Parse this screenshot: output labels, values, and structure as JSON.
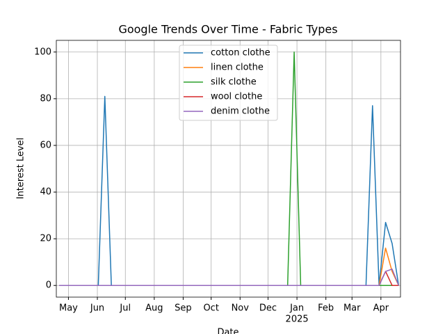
{
  "chart_data": {
    "type": "line",
    "title": "Google Trends Over Time - Fabric Types",
    "x_label": "Date",
    "y_label": "Interest Level",
    "x": [
      "2024-04-21",
      "2024-04-28",
      "2024-05-05",
      "2024-05-12",
      "2024-05-19",
      "2024-05-26",
      "2024-06-02",
      "2024-06-09",
      "2024-06-16",
      "2024-06-23",
      "2024-06-30",
      "2024-07-07",
      "2024-07-14",
      "2024-07-21",
      "2024-07-28",
      "2024-08-04",
      "2024-08-11",
      "2024-08-18",
      "2024-08-25",
      "2024-09-01",
      "2024-09-08",
      "2024-09-15",
      "2024-09-22",
      "2024-09-29",
      "2024-10-06",
      "2024-10-13",
      "2024-10-20",
      "2024-10-27",
      "2024-11-03",
      "2024-11-10",
      "2024-11-17",
      "2024-11-24",
      "2024-12-01",
      "2024-12-08",
      "2024-12-15",
      "2024-12-22",
      "2024-12-29",
      "2025-01-05",
      "2025-01-12",
      "2025-01-19",
      "2025-01-26",
      "2025-02-02",
      "2025-02-09",
      "2025-02-16",
      "2025-02-23",
      "2025-03-02",
      "2025-03-09",
      "2025-03-16",
      "2025-03-23",
      "2025-03-30",
      "2025-04-06",
      "2025-04-13",
      "2025-04-20"
    ],
    "series": [
      {
        "name": "cotton clothe",
        "color": "#1f77b4",
        "values": [
          0,
          0,
          0,
          0,
          0,
          0,
          0,
          81,
          0,
          0,
          0,
          0,
          0,
          0,
          0,
          0,
          0,
          0,
          0,
          0,
          0,
          0,
          0,
          0,
          0,
          0,
          0,
          0,
          0,
          0,
          0,
          0,
          0,
          0,
          0,
          0,
          0,
          0,
          0,
          0,
          0,
          0,
          0,
          0,
          0,
          0,
          0,
          0,
          77,
          0,
          27,
          18,
          0
        ]
      },
      {
        "name": "linen clothe",
        "color": "#ff7f0e",
        "values": [
          0,
          0,
          0,
          0,
          0,
          0,
          0,
          0,
          0,
          0,
          0,
          0,
          0,
          0,
          0,
          0,
          0,
          0,
          0,
          0,
          0,
          0,
          0,
          0,
          0,
          0,
          0,
          0,
          0,
          0,
          0,
          0,
          0,
          0,
          0,
          0,
          0,
          0,
          0,
          0,
          0,
          0,
          0,
          0,
          0,
          0,
          0,
          0,
          0,
          0,
          16,
          6,
          0
        ]
      },
      {
        "name": "silk clothe",
        "color": "#2ca02c",
        "values": [
          0,
          0,
          0,
          0,
          0,
          0,
          0,
          0,
          0,
          0,
          0,
          0,
          0,
          0,
          0,
          0,
          0,
          0,
          0,
          0,
          0,
          0,
          0,
          0,
          0,
          0,
          0,
          0,
          0,
          0,
          0,
          0,
          0,
          0,
          0,
          0,
          100,
          0,
          0,
          0,
          0,
          0,
          0,
          0,
          0,
          0,
          0,
          0,
          0,
          0,
          0,
          0,
          0
        ]
      },
      {
        "name": "wool clothe",
        "color": "#d62728",
        "values": [
          0,
          0,
          0,
          0,
          0,
          0,
          0,
          0,
          0,
          0,
          0,
          0,
          0,
          0,
          0,
          0,
          0,
          0,
          0,
          0,
          0,
          0,
          0,
          0,
          0,
          0,
          0,
          0,
          0,
          0,
          0,
          0,
          0,
          0,
          0,
          0,
          0,
          0,
          0,
          0,
          0,
          0,
          0,
          0,
          0,
          0,
          0,
          0,
          0,
          0,
          6,
          0,
          0
        ]
      },
      {
        "name": "denim clothe",
        "color": "#9467bd",
        "values": [
          0,
          0,
          0,
          0,
          0,
          0,
          0,
          0,
          0,
          0,
          0,
          0,
          0,
          0,
          0,
          0,
          0,
          0,
          0,
          0,
          0,
          0,
          0,
          0,
          0,
          0,
          0,
          0,
          0,
          0,
          0,
          0,
          0,
          0,
          0,
          0,
          0,
          0,
          0,
          0,
          0,
          0,
          0,
          0,
          0,
          0,
          0,
          0,
          0,
          0,
          6,
          7,
          0
        ]
      }
    ],
    "xlim": [
      "2024-04-18",
      "2025-04-22"
    ],
    "xticks": [
      {
        "value": "2024-05-01",
        "label": "May"
      },
      {
        "value": "2024-06-01",
        "label": "Jun"
      },
      {
        "value": "2024-07-01",
        "label": "Jul"
      },
      {
        "value": "2024-08-01",
        "label": "Aug"
      },
      {
        "value": "2024-09-01",
        "label": "Sep"
      },
      {
        "value": "2024-10-01",
        "label": "Oct"
      },
      {
        "value": "2024-11-01",
        "label": "Nov"
      },
      {
        "value": "2024-12-01",
        "label": "Dec"
      },
      {
        "value": "2025-01-01",
        "label": "Jan"
      },
      {
        "value": "2025-02-01",
        "label": "Feb"
      },
      {
        "value": "2025-03-01",
        "label": "Mar"
      },
      {
        "value": "2025-04-01",
        "label": "Apr"
      }
    ],
    "x_year_label": {
      "value": "2025-01-01",
      "label": "2025"
    },
    "ylim": [
      -5,
      105
    ],
    "yticks": [
      0,
      20,
      40,
      60,
      80,
      100
    ],
    "grid": true,
    "legend": "upper center"
  }
}
